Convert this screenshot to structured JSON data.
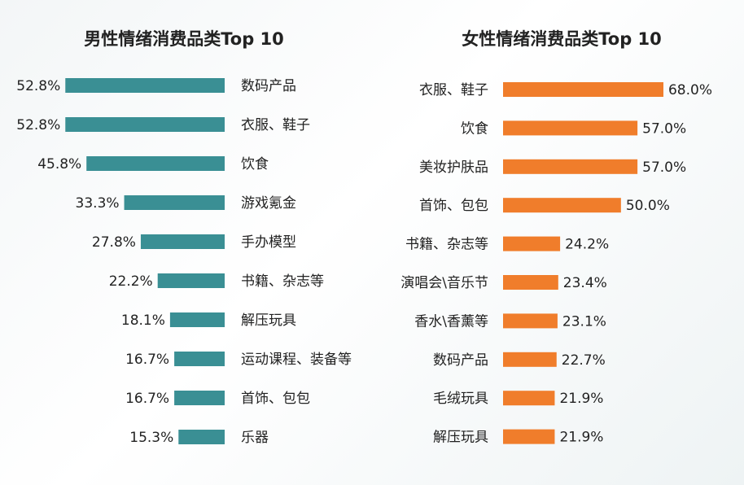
{
  "chart_data": [
    {
      "type": "bar",
      "orientation": "horizontal",
      "title": "男性情绪消费品类Top 10",
      "color": "#3a8f94",
      "categories": [
        "数码产品",
        "衣服、鞋子",
        "饮食",
        "游戏氪金",
        "手办模型",
        "书籍、杂志等",
        "解压玩具",
        "运动课程、装备等",
        "首饰、包包",
        "乐器"
      ],
      "values": [
        52.8,
        52.8,
        45.8,
        33.3,
        27.8,
        22.2,
        18.1,
        16.7,
        16.7,
        15.3
      ],
      "value_labels": [
        "52.8%",
        "52.8%",
        "45.8%",
        "33.3%",
        "27.8%",
        "22.2%",
        "18.1%",
        "16.7%",
        "16.7%",
        "15.3%"
      ],
      "unit": "%",
      "grid": false,
      "legend": "none"
    },
    {
      "type": "bar",
      "orientation": "horizontal",
      "title": "女性情绪消费品类Top 10",
      "color": "#f07d2b",
      "categories": [
        "衣服、鞋子",
        "饮食",
        "美妆护肤品",
        "首饰、包包",
        "书籍、杂志等",
        "演唱会\\音乐节",
        "香水\\香薰等",
        "数码产品",
        "毛绒玩具",
        "解压玩具"
      ],
      "values": [
        68.0,
        57.0,
        57.0,
        50.0,
        24.2,
        23.4,
        23.1,
        22.7,
        21.9,
        21.9
      ],
      "value_labels": [
        "68.0%",
        "57.0%",
        "57.0%",
        "50.0%",
        "24.2%",
        "23.4%",
        "23.1%",
        "22.7%",
        "21.9%",
        "21.9%"
      ],
      "unit": "%",
      "grid": false,
      "legend": "none"
    }
  ]
}
